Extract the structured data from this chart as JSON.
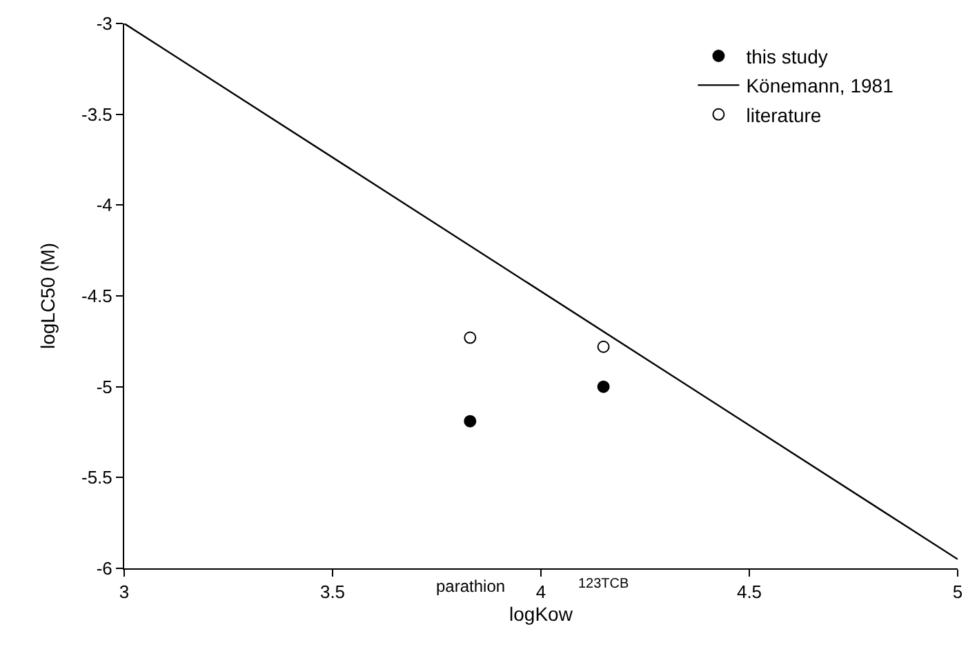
{
  "chart_data": {
    "type": "scatter",
    "xlabel": "logKow",
    "ylabel": "logLC50 (M)",
    "xlim": [
      3,
      5
    ],
    "ylim": [
      -6,
      -3
    ],
    "xticks": [
      3,
      3.5,
      4,
      4.5,
      5
    ],
    "yticks": [
      -6,
      -5.5,
      -5,
      -4.5,
      -4,
      -3.5,
      -3
    ],
    "legend": "top right",
    "series": [
      {
        "name": "this study",
        "marker": "circle",
        "color": "#000000",
        "x": [
          3.83,
          4.15
        ],
        "values": [
          -5.19,
          -5.0
        ]
      },
      {
        "name": "Könemann, 1981",
        "type": "line",
        "marker": "none",
        "color": "#000000",
        "x": [
          3,
          5
        ],
        "values": [
          -3,
          -5.95
        ]
      },
      {
        "name": "literature",
        "marker": "circle-open",
        "color": "#000000",
        "x": [
          3.83,
          4.15
        ],
        "values": [
          -4.73,
          -4.78
        ]
      }
    ],
    "annotations": [
      "parathion",
      "123TCB"
    ]
  }
}
